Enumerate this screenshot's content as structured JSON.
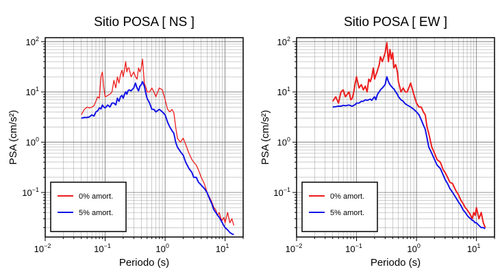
{
  "chart_data": [
    {
      "type": "line",
      "title": "Sitio POSA [ NS ]",
      "xlabel": "Periodo (s)",
      "ylabel": "PSA (cm/s²)",
      "xscale": "log",
      "yscale": "log",
      "xlim": [
        0.01,
        20
      ],
      "ylim": [
        0.013,
        120
      ],
      "xticks": [
        {
          "base": "10",
          "exp": "−2"
        },
        {
          "base": "10",
          "exp": "−1"
        },
        {
          "base": "10",
          "exp": "0"
        },
        {
          "base": "10",
          "exp": "1"
        }
      ],
      "yticks": [
        {
          "base": "10",
          "exp": "−1"
        },
        {
          "base": "10",
          "exp": "0"
        },
        {
          "base": "10",
          "exp": "1"
        },
        {
          "base": "10",
          "exp": "2"
        }
      ],
      "grid": true,
      "legend_position": "bottom-left",
      "series": [
        {
          "name": "0% amort.",
          "color": "#ee1c1c",
          "x": [
            0.04,
            0.045,
            0.05,
            0.055,
            0.06,
            0.065,
            0.07,
            0.075,
            0.08,
            0.085,
            0.09,
            0.095,
            0.1,
            0.11,
            0.12,
            0.13,
            0.14,
            0.15,
            0.16,
            0.17,
            0.18,
            0.19,
            0.2,
            0.21,
            0.22,
            0.23,
            0.24,
            0.25,
            0.27,
            0.3,
            0.32,
            0.34,
            0.36,
            0.38,
            0.4,
            0.42,
            0.45,
            0.48,
            0.5,
            0.55,
            0.6,
            0.65,
            0.7,
            0.8,
            0.9,
            1.0,
            1.1,
            1.2,
            1.3,
            1.4,
            1.5,
            1.6,
            1.8,
            2.0,
            2.2,
            2.5,
            2.8,
            3.0,
            3.3,
            3.6,
            4.0,
            4.5,
            5.0,
            5.5,
            6.0,
            6.5,
            7.0,
            7.5,
            8.0,
            8.5,
            9.0,
            9.5,
            10.0,
            11.0,
            12.0,
            13.0,
            14.0
          ],
          "y": [
            3.5,
            4.5,
            5.0,
            4.8,
            5.0,
            5.3,
            6.5,
            8.0,
            7.5,
            20.0,
            25.0,
            12.0,
            8.0,
            8.5,
            9.0,
            10.0,
            17.0,
            12.0,
            20.0,
            15.0,
            22.0,
            27.0,
            20.0,
            28.0,
            40.0,
            25.0,
            30.0,
            30.0,
            20.0,
            25.0,
            20.0,
            18.0,
            30.0,
            25.0,
            30.0,
            45.0,
            15.0,
            12.0,
            10.0,
            10.0,
            12.0,
            10.0,
            8.0,
            12.0,
            11.0,
            7.0,
            4.5,
            4.0,
            4.5,
            3.8,
            2.0,
            1.2,
            1.0,
            1.2,
            0.9,
            0.6,
            0.45,
            0.4,
            0.35,
            0.28,
            0.2,
            0.15,
            0.1,
            0.08,
            0.065,
            0.05,
            0.045,
            0.035,
            0.04,
            0.03,
            0.028,
            0.032,
            0.025,
            0.04,
            0.025,
            0.03,
            0.022
          ]
        },
        {
          "name": "5% amort.",
          "color": "#1212e6",
          "x": [
            0.04,
            0.045,
            0.05,
            0.055,
            0.06,
            0.065,
            0.07,
            0.075,
            0.08,
            0.085,
            0.09,
            0.095,
            0.1,
            0.11,
            0.12,
            0.13,
            0.14,
            0.15,
            0.16,
            0.17,
            0.18,
            0.19,
            0.2,
            0.21,
            0.22,
            0.23,
            0.24,
            0.25,
            0.27,
            0.3,
            0.32,
            0.34,
            0.36,
            0.38,
            0.4,
            0.42,
            0.45,
            0.48,
            0.5,
            0.55,
            0.6,
            0.65,
            0.7,
            0.8,
            0.9,
            1.0,
            1.1,
            1.2,
            1.3,
            1.4,
            1.5,
            1.6,
            1.8,
            2.0,
            2.2,
            2.5,
            2.8,
            3.0,
            3.3,
            3.6,
            4.0,
            4.5,
            5.0,
            5.5,
            6.0,
            6.5,
            7.0,
            7.5,
            8.0,
            8.5,
            9.0,
            9.5,
            10.0,
            11.0,
            12.0,
            13.0,
            14.0
          ],
          "y": [
            3.0,
            3.1,
            3.1,
            3.2,
            3.5,
            3.3,
            4.0,
            4.2,
            4.8,
            4.6,
            5.5,
            5.0,
            4.8,
            5.5,
            5.0,
            6.0,
            6.0,
            5.5,
            7.5,
            6.5,
            8.0,
            8.5,
            7.5,
            9.0,
            10.0,
            9.0,
            10.5,
            11.0,
            10.5,
            12.0,
            15.0,
            12.0,
            10.5,
            13.0,
            14.0,
            16.0,
            13.0,
            9.0,
            7.5,
            6.0,
            4.5,
            4.5,
            4.0,
            4.5,
            4.0,
            3.5,
            2.5,
            2.0,
            1.7,
            1.5,
            1.0,
            0.8,
            0.65,
            0.55,
            0.4,
            0.3,
            0.25,
            0.2,
            0.2,
            0.16,
            0.14,
            0.12,
            0.1,
            0.075,
            0.06,
            0.045,
            0.04,
            0.035,
            0.032,
            0.028,
            0.025,
            0.022,
            0.02,
            0.018,
            0.016,
            0.015,
            0.0145
          ]
        }
      ]
    },
    {
      "type": "line",
      "title": "Sitio POSA [ EW ]",
      "xlabel": "Periodo (s)",
      "ylabel": "PSA (cm/s²)",
      "xscale": "log",
      "yscale": "log",
      "xlim": [
        0.01,
        20
      ],
      "ylim": [
        0.013,
        120
      ],
      "xticks": [
        {
          "base": "10",
          "exp": "−2"
        },
        {
          "base": "10",
          "exp": "−1"
        },
        {
          "base": "10",
          "exp": "0"
        },
        {
          "base": "10",
          "exp": "1"
        }
      ],
      "yticks": [
        {
          "base": "10",
          "exp": "−1"
        },
        {
          "base": "10",
          "exp": "0"
        },
        {
          "base": "10",
          "exp": "1"
        },
        {
          "base": "10",
          "exp": "2"
        }
      ],
      "grid": true,
      "legend_position": "bottom-left",
      "series": [
        {
          "name": "0% amort.",
          "color": "#ee1c1c",
          "x": [
            0.04,
            0.045,
            0.05,
            0.055,
            0.06,
            0.065,
            0.07,
            0.075,
            0.08,
            0.085,
            0.09,
            0.095,
            0.1,
            0.11,
            0.12,
            0.13,
            0.14,
            0.15,
            0.16,
            0.17,
            0.18,
            0.19,
            0.2,
            0.21,
            0.22,
            0.23,
            0.24,
            0.25,
            0.27,
            0.3,
            0.32,
            0.34,
            0.36,
            0.38,
            0.4,
            0.42,
            0.45,
            0.48,
            0.5,
            0.55,
            0.6,
            0.65,
            0.7,
            0.8,
            0.9,
            1.0,
            1.1,
            1.2,
            1.3,
            1.4,
            1.5,
            1.6,
            1.8,
            2.0,
            2.2,
            2.5,
            2.8,
            3.0,
            3.3,
            3.6,
            4.0,
            4.5,
            5.0,
            5.5,
            6.0,
            6.5,
            7.0,
            7.5,
            8.0,
            8.5,
            9.0,
            9.5,
            10.0,
            11.0,
            12.0,
            13.0,
            14.0
          ],
          "y": [
            6.5,
            8.0,
            6.0,
            10.0,
            11.0,
            8.0,
            9.0,
            10.0,
            7.0,
            7.5,
            10.0,
            15.0,
            20.0,
            12.0,
            14.0,
            11.0,
            13.0,
            10.0,
            18.0,
            16.0,
            20.0,
            30.0,
            18.0,
            22.0,
            25.0,
            30.0,
            35.0,
            50.0,
            40.0,
            60.0,
            95.0,
            40.0,
            70.0,
            45.0,
            60.0,
            30.0,
            35.0,
            25.0,
            16.0,
            10.0,
            12.0,
            10.0,
            10.0,
            15.0,
            9.0,
            6.0,
            5.0,
            5.0,
            4.0,
            3.5,
            2.0,
            1.5,
            0.8,
            0.6,
            0.45,
            0.4,
            0.28,
            0.25,
            0.2,
            0.16,
            0.15,
            0.11,
            0.09,
            0.07,
            0.06,
            0.05,
            0.045,
            0.04,
            0.035,
            0.03,
            0.04,
            0.035,
            0.05,
            0.03,
            0.04,
            0.025,
            0.02
          ]
        },
        {
          "name": "5% amort.",
          "color": "#1212e6",
          "x": [
            0.04,
            0.045,
            0.05,
            0.055,
            0.06,
            0.065,
            0.07,
            0.075,
            0.08,
            0.085,
            0.09,
            0.095,
            0.1,
            0.11,
            0.12,
            0.13,
            0.14,
            0.15,
            0.16,
            0.17,
            0.18,
            0.19,
            0.2,
            0.21,
            0.22,
            0.23,
            0.24,
            0.25,
            0.27,
            0.3,
            0.32,
            0.34,
            0.36,
            0.38,
            0.4,
            0.42,
            0.45,
            0.48,
            0.5,
            0.55,
            0.6,
            0.65,
            0.7,
            0.8,
            0.9,
            1.0,
            1.1,
            1.2,
            1.3,
            1.4,
            1.5,
            1.6,
            1.8,
            2.0,
            2.2,
            2.5,
            2.8,
            3.0,
            3.3,
            3.6,
            4.0,
            4.5,
            5.0,
            5.5,
            6.0,
            6.5,
            7.0,
            7.5,
            8.0,
            8.5,
            9.0,
            9.5,
            10.0,
            11.0,
            12.0,
            13.0,
            14.0
          ],
          "y": [
            5.0,
            5.1,
            5.2,
            5.2,
            5.4,
            5.3,
            5.4,
            5.5,
            5.3,
            5.2,
            5.4,
            5.6,
            6.0,
            6.0,
            6.5,
            6.5,
            7.0,
            6.8,
            7.0,
            7.2,
            6.8,
            7.5,
            8.0,
            7.0,
            8.5,
            9.5,
            10.0,
            11.0,
            12.0,
            14.0,
            20.0,
            16.0,
            14.0,
            13.0,
            12.0,
            11.5,
            10.0,
            9.0,
            8.0,
            7.0,
            6.5,
            5.8,
            5.5,
            5.0,
            4.5,
            4.0,
            3.5,
            2.8,
            2.2,
            1.8,
            1.2,
            0.8,
            0.6,
            0.45,
            0.35,
            0.3,
            0.22,
            0.18,
            0.15,
            0.12,
            0.1,
            0.08,
            0.065,
            0.055,
            0.045,
            0.04,
            0.035,
            0.032,
            0.03,
            0.028,
            0.027,
            0.025,
            0.025,
            0.022,
            0.02,
            0.02,
            0.019
          ]
        }
      ]
    }
  ]
}
